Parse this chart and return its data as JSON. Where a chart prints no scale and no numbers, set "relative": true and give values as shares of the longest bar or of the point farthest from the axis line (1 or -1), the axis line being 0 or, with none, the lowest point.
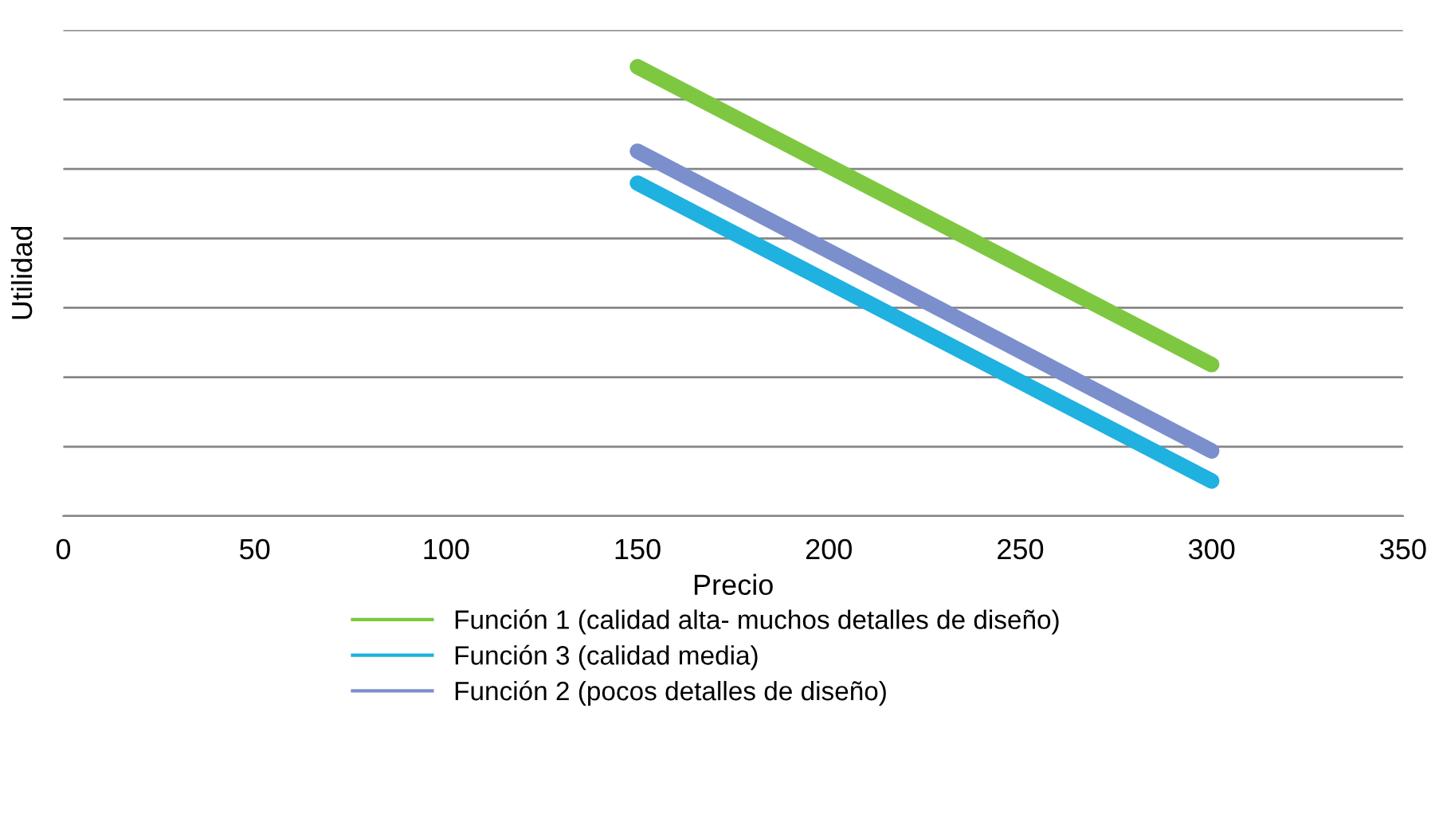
{
  "chart_data": {
    "type": "line",
    "xlabel": "Precio",
    "ylabel": "Utilidad",
    "relative": true,
    "xlim": [
      0,
      350
    ],
    "xticks": [
      0,
      50,
      100,
      150,
      200,
      250,
      300,
      350
    ],
    "grid": "y",
    "legend": "bottom",
    "x": [
      150,
      300
    ],
    "series": [
      {
        "name": "Función 1 (calidad alta- muchos detalles de diseño)",
        "color": "#7dc840",
        "values": [
          1,
          0.337
        ]
      },
      {
        "name": "Función 3 (calidad media)",
        "color": "#1fb1e0",
        "values": [
          0.741,
          0.078
        ]
      },
      {
        "name": "Función 2 (pocos detalles de diseño)",
        "color": "#7a8fcc",
        "values": [
          0.812,
          0.145
        ]
      }
    ]
  }
}
